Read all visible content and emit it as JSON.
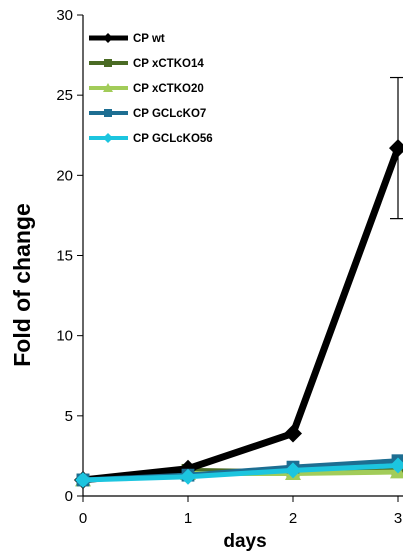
{
  "chart_data": {
    "type": "line",
    "xlabel": "days",
    "ylabel": "Fold of change",
    "x": [
      0,
      1,
      2,
      3
    ],
    "xticks": [
      "0",
      "1",
      "2",
      "3"
    ],
    "yticks": [
      "0",
      "5",
      "10",
      "15",
      "20",
      "25",
      "30"
    ],
    "ylim": [
      0,
      30
    ],
    "xlim": [
      0,
      3
    ],
    "grid": false,
    "legend_position": "top-left",
    "series": [
      {
        "name": "CP wt",
        "values": [
          1.0,
          1.7,
          3.9,
          21.7
        ],
        "error": [
          null,
          null,
          null,
          4.4
        ],
        "color": "#000000",
        "marker": "diamond"
      },
      {
        "name": "CP xCTKO14",
        "values": [
          1.0,
          1.6,
          1.5,
          1.6
        ],
        "color": "#4a6b24",
        "marker": "square"
      },
      {
        "name": "CP xCTKO20",
        "values": [
          1.0,
          1.4,
          1.4,
          1.5
        ],
        "color": "#a2cc59",
        "marker": "triangle"
      },
      {
        "name": "CP GCLcKO7",
        "values": [
          1.0,
          1.3,
          1.8,
          2.2
        ],
        "color": "#1d6e92",
        "marker": "square"
      },
      {
        "name": "CP GCLcKO56",
        "values": [
          1.0,
          1.2,
          1.6,
          1.9
        ],
        "color": "#1cc5df",
        "marker": "diamond"
      }
    ]
  }
}
